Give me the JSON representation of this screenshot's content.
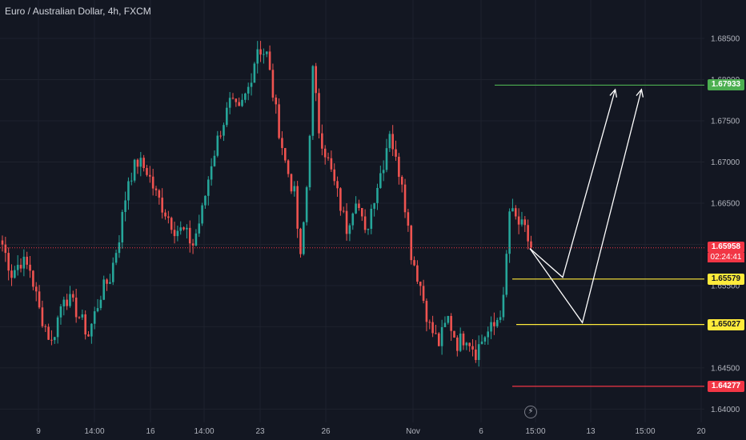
{
  "header": {
    "title": "Euro / Australian Dollar, 4h, FXCM"
  },
  "colors": {
    "background": "#131722",
    "up": "#26a69a",
    "down": "#ef5350",
    "grid": "#1e222d",
    "resistance_line": "#4caf50",
    "support_line": "#ffeb3b",
    "stop_line": "#f23645",
    "arrow": "#ffffff",
    "current_price": "#f23645"
  },
  "status": {
    "current_price_label": "1.65958",
    "countdown": "02:24:41"
  },
  "chart_data": {
    "type": "candlestick",
    "title": "Euro / Australian Dollar, 4h, FXCM",
    "xlabel": "",
    "ylabel": "",
    "ylim": [
      1.638,
      1.6885
    ],
    "grid": true,
    "y_ticks": [
      "1.68500",
      "1.68000",
      "1.67500",
      "1.67000",
      "1.66500",
      "1.66000",
      "1.65500",
      "1.65000",
      "1.64500",
      "1.64000"
    ],
    "x_ticks": [
      "9",
      "14:00",
      "16",
      "14:00",
      "23",
      "26",
      "Nov",
      "6",
      "15:00",
      "13",
      "15:00",
      "20"
    ],
    "current_price": 1.65958,
    "horizontal_levels": [
      {
        "label": "1.67933",
        "value": 1.67933,
        "color": "#4caf50",
        "text_color": "#ffffff"
      },
      {
        "label": "1.65579",
        "value": 1.65579,
        "color": "#ffeb3b",
        "text_color": "#131722"
      },
      {
        "label": "1.65027",
        "value": 1.65027,
        "color": "#ffeb3b",
        "text_color": "#131722"
      },
      {
        "label": "1.64277",
        "value": 1.64277,
        "color": "#f23645",
        "text_color": "#ffffff"
      }
    ],
    "projection_paths": [
      {
        "points": [
          [
            0,
            1.6595
          ],
          [
            5,
            1.656
          ],
          [
            13,
            1.6788
          ]
        ]
      },
      {
        "points": [
          [
            0,
            1.6595
          ],
          [
            8,
            1.6505
          ],
          [
            17,
            1.6788
          ]
        ]
      }
    ],
    "anchors": [
      {
        "i": 0,
        "p": 1.66
      },
      {
        "i": 3,
        "p": 1.6565
      },
      {
        "i": 6,
        "p": 1.658
      },
      {
        "i": 9,
        "p": 1.657
      },
      {
        "i": 12,
        "p": 1.652
      },
      {
        "i": 16,
        "p": 1.648
      },
      {
        "i": 20,
        "p": 1.654
      },
      {
        "i": 24,
        "p": 1.652
      },
      {
        "i": 28,
        "p": 1.649
      },
      {
        "i": 32,
        "p": 1.654
      },
      {
        "i": 35,
        "p": 1.656
      },
      {
        "i": 38,
        "p": 1.661
      },
      {
        "i": 41,
        "p": 1.668
      },
      {
        "i": 44,
        "p": 1.67
      },
      {
        "i": 47,
        "p": 1.669
      },
      {
        "i": 50,
        "p": 1.666
      },
      {
        "i": 53,
        "p": 1.664
      },
      {
        "i": 56,
        "p": 1.662
      },
      {
        "i": 59,
        "p": 1.6615
      },
      {
        "i": 62,
        "p": 1.66
      },
      {
        "i": 65,
        "p": 1.664
      },
      {
        "i": 68,
        "p": 1.67
      },
      {
        "i": 71,
        "p": 1.674
      },
      {
        "i": 74,
        "p": 1.677
      },
      {
        "i": 77,
        "p": 1.676
      },
      {
        "i": 80,
        "p": 1.679
      },
      {
        "i": 83,
        "p": 1.684
      },
      {
        "i": 86,
        "p": 1.683
      },
      {
        "i": 89,
        "p": 1.676
      },
      {
        "i": 92,
        "p": 1.67
      },
      {
        "i": 95,
        "p": 1.666
      },
      {
        "i": 97,
        "p": 1.658
      },
      {
        "i": 99,
        "p": 1.667
      },
      {
        "i": 101,
        "p": 1.681
      },
      {
        "i": 103,
        "p": 1.674
      },
      {
        "i": 106,
        "p": 1.67
      },
      {
        "i": 109,
        "p": 1.666
      },
      {
        "i": 112,
        "p": 1.662
      },
      {
        "i": 115,
        "p": 1.666
      },
      {
        "i": 118,
        "p": 1.661
      },
      {
        "i": 121,
        "p": 1.666
      },
      {
        "i": 124,
        "p": 1.67
      },
      {
        "i": 126,
        "p": 1.674
      },
      {
        "i": 128,
        "p": 1.67
      },
      {
        "i": 130,
        "p": 1.668
      },
      {
        "i": 133,
        "p": 1.659
      },
      {
        "i": 136,
        "p": 1.655
      },
      {
        "i": 139,
        "p": 1.65
      },
      {
        "i": 142,
        "p": 1.648
      },
      {
        "i": 145,
        "p": 1.651
      },
      {
        "i": 148,
        "p": 1.648
      },
      {
        "i": 151,
        "p": 1.649
      },
      {
        "i": 154,
        "p": 1.647
      },
      {
        "i": 157,
        "p": 1.649
      },
      {
        "i": 160,
        "p": 1.65
      },
      {
        "i": 163,
        "p": 1.653
      },
      {
        "i": 165,
        "p": 1.664
      },
      {
        "i": 167,
        "p": 1.663
      },
      {
        "i": 170,
        "p": 1.6615
      },
      {
        "i": 172,
        "p": 1.6596
      }
    ]
  }
}
